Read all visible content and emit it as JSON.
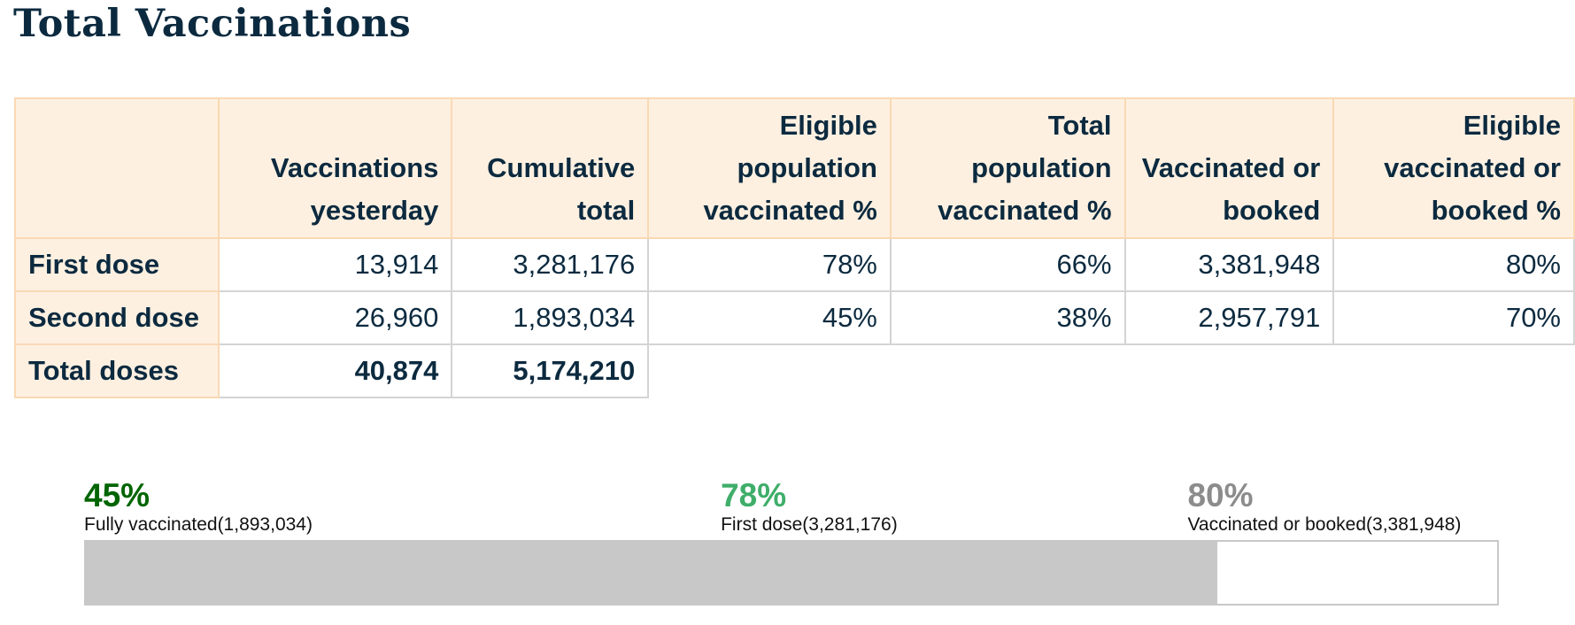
{
  "title": "Total Vaccinations",
  "table": {
    "corner": "",
    "columns": [
      "Vaccinations yesterday",
      "Cumulative total",
      "Eligible population vaccinated %",
      "Total population vaccinated %",
      "Vaccinated or booked",
      "Eligible vaccinated or booked %"
    ],
    "rows": [
      {
        "label": "First dose",
        "cells": [
          "13,914",
          "3,281,176",
          "78%",
          "66%",
          "3,381,948",
          "80%"
        ]
      },
      {
        "label": "Second dose",
        "cells": [
          "26,960",
          "1,893,034",
          "45%",
          "38%",
          "2,957,791",
          "70%"
        ]
      }
    ],
    "total": {
      "label": "Total doses",
      "cells": [
        "40,874",
        "5,174,210"
      ]
    }
  },
  "chart_data": {
    "type": "bar",
    "orientation": "horizontal-stacked-progress",
    "segments": [
      {
        "pct_label": "45%",
        "value": 45,
        "label": "Fully vaccinated(1,893,034)",
        "color": "#006400"
      },
      {
        "pct_label": "78%",
        "value": 78,
        "label": "First dose(3,281,176)",
        "color": "#9ccc9a",
        "label_color": "#3fae6a"
      },
      {
        "pct_label": "80%",
        "value": 80,
        "label": "Vaccinated or booked(3,381,948)",
        "color": "#c8c8c8",
        "label_color": "#8c8c8c"
      }
    ],
    "range": [
      0,
      100
    ]
  }
}
